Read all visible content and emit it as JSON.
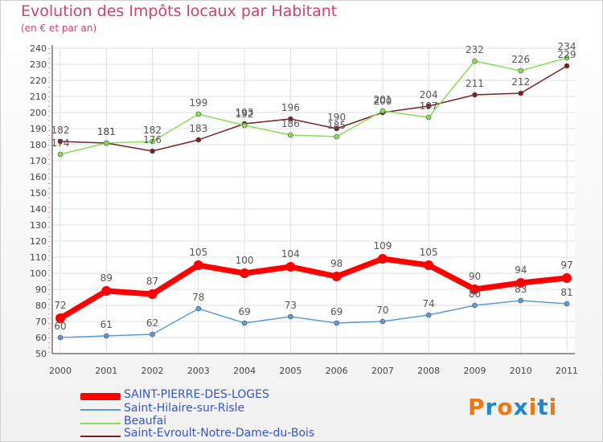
{
  "title": "Evolution des Impôts locaux par Habitant",
  "subtitle": "(en € et par an)",
  "chart_data": {
    "type": "line",
    "title": "Evolution des Impôts locaux par Habitant",
    "subtitle": "(en € et par an)",
    "xlabel": "",
    "ylabel": "",
    "ylim": [
      50,
      240
    ],
    "ytick_step": 10,
    "grid": true,
    "categories": [
      "2000",
      "2001",
      "2002",
      "2003",
      "2004",
      "2005",
      "2006",
      "2007",
      "2008",
      "2009",
      "2010",
      "2011"
    ],
    "series": [
      {
        "name": "SAINT-PIERRE-DES-LOGES",
        "color": "#ff0000",
        "values": [
          72,
          89,
          87,
          105,
          100,
          104,
          98,
          109,
          105,
          90,
          94,
          97
        ]
      },
      {
        "name": "Saint-Hilaire-sur-Risle",
        "color": "#5b9bd5",
        "values": [
          60,
          61,
          62,
          78,
          69,
          73,
          69,
          70,
          74,
          80,
          83,
          81
        ]
      },
      {
        "name": "Beaufai",
        "color": "#88dd55",
        "values": [
          174,
          181,
          182,
          199,
          192,
          186,
          185,
          201,
          197,
          232,
          226,
          234
        ]
      },
      {
        "name": "Saint-Evroult-Notre-Dame-du-Bois",
        "color": "#772222",
        "values": [
          182,
          181,
          176,
          183,
          193,
          196,
          190,
          200,
          204,
          211,
          212,
          229
        ]
      }
    ],
    "legend_position": "bottom-left"
  },
  "logo": {
    "letters": [
      "P",
      "r",
      "o",
      "x",
      "i",
      "t",
      "i"
    ],
    "colors": [
      "#ee7711",
      "#2288cc",
      "#ee7711",
      "#2288cc",
      "#ee7711",
      "#2288cc",
      "#ee7711"
    ]
  }
}
